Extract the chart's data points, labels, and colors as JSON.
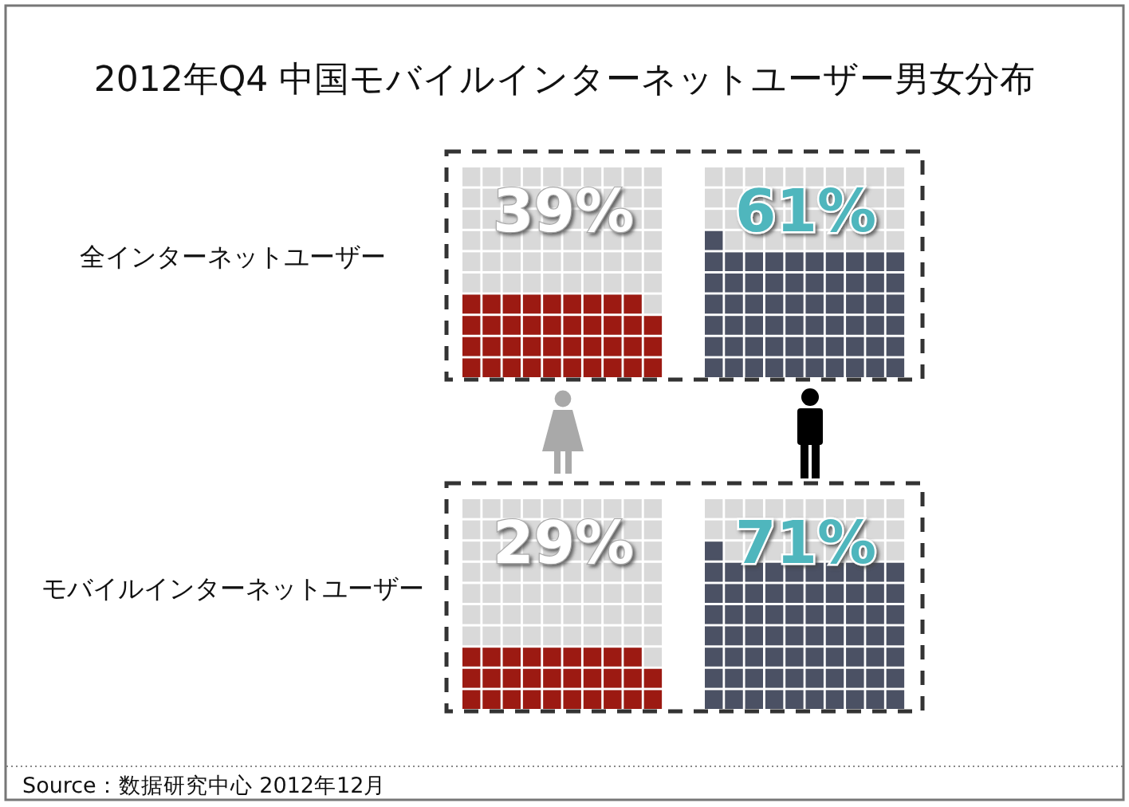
{
  "chart_data": {
    "type": "other",
    "title": "2012年Q4 中国モバイルインターネットユーザー男女分布",
    "categories": [
      "全インターネットユーザー",
      "モバイルインターネットユーザー"
    ],
    "series": [
      {
        "color": "#9c1a12",
        "values": [
          39,
          29
        ],
        "value_labels": [
          "39%",
          "29%"
        ]
      },
      {
        "color": "#4b5164",
        "values": [
          61,
          71
        ],
        "value_labels": [
          "61%",
          "71%"
        ]
      }
    ],
    "annotations": [
      "Source：数据研究中心 2012年12月"
    ]
  }
}
